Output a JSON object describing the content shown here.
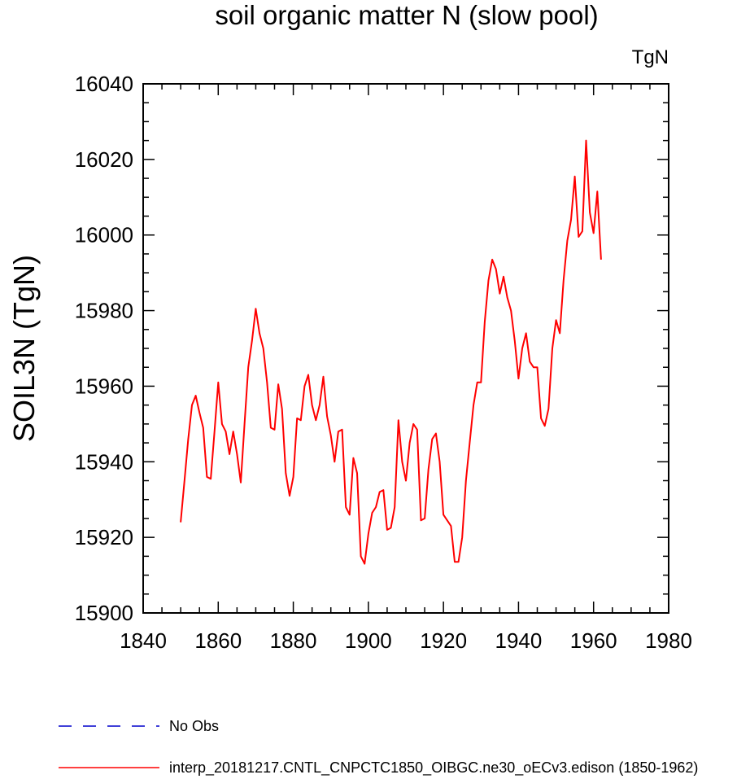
{
  "chart_data": {
    "type": "line",
    "title": "soil organic matter N (slow pool)",
    "units_label": "TgN",
    "ylabel": "SOIL3N  (TgN)",
    "xlabel": "",
    "xlim": [
      1840,
      1980
    ],
    "ylim": [
      15900,
      16040
    ],
    "x_ticks": [
      1840,
      1860,
      1880,
      1900,
      1920,
      1940,
      1960,
      1980
    ],
    "y_ticks": [
      15900,
      15920,
      15940,
      15960,
      15980,
      16000,
      16020,
      16040
    ],
    "x_tick_labels": [
      "1840",
      "1860",
      "1880",
      "1900",
      "1920",
      "1940",
      "1960",
      "1980"
    ],
    "y_tick_labels": [
      "15900",
      "15920",
      "15940",
      "15960",
      "15980",
      "16000",
      "16020",
      "16040"
    ],
    "grid": false,
    "legend_position": "bottom",
    "series": [
      {
        "name": "interp_20181217.CNTL_CNPCTC1850_OIBGC.ne30_oECv3.edison (1850-1962)",
        "color": "#ff0000",
        "style": "solid",
        "x": [
          1850,
          1851,
          1852,
          1853,
          1854,
          1855,
          1856,
          1857,
          1858,
          1859,
          1860,
          1861,
          1862,
          1863,
          1864,
          1865,
          1866,
          1867,
          1868,
          1869,
          1870,
          1871,
          1872,
          1873,
          1874,
          1875,
          1876,
          1877,
          1878,
          1879,
          1880,
          1881,
          1882,
          1883,
          1884,
          1885,
          1886,
          1887,
          1888,
          1889,
          1890,
          1891,
          1892,
          1893,
          1894,
          1895,
          1896,
          1897,
          1898,
          1899,
          1900,
          1901,
          1902,
          1903,
          1904,
          1905,
          1906,
          1907,
          1908,
          1909,
          1910,
          1911,
          1912,
          1913,
          1914,
          1915,
          1916,
          1917,
          1918,
          1919,
          1920,
          1921,
          1922,
          1923,
          1924,
          1925,
          1926,
          1927,
          1928,
          1929,
          1930,
          1931,
          1932,
          1933,
          1934,
          1935,
          1936,
          1937,
          1938,
          1939,
          1940,
          1941,
          1942,
          1943,
          1944,
          1945,
          1946,
          1947,
          1948,
          1949,
          1950,
          1951,
          1952,
          1953,
          1954,
          1955,
          1956,
          1957,
          1958,
          1959,
          1960,
          1961,
          1962
        ],
        "y": [
          15924,
          15935,
          15946,
          15955,
          15957.5,
          15953,
          15949,
          15936,
          15935.5,
          15948,
          15961,
          15950,
          15948,
          15942,
          15948,
          15942,
          15934.5,
          15950,
          15965,
          15972,
          15980.5,
          15974,
          15970,
          15961,
          15949,
          15948.5,
          15960.5,
          15954,
          15937,
          15931,
          15936,
          15951.5,
          15951,
          15960,
          15963,
          15955,
          15951,
          15955,
          15962.5,
          15952,
          15947,
          15940,
          15948,
          15948.5,
          15928,
          15926,
          15941,
          15937,
          15915,
          15913,
          15921,
          15926.5,
          15928,
          15932,
          15932.5,
          15922,
          15922.5,
          15928,
          15951,
          15940,
          15935,
          15945,
          15950,
          15948.5,
          15924.5,
          15925,
          15938,
          15946,
          15947.5,
          15940,
          15926,
          15924.5,
          15923,
          15913.5,
          15913.5,
          15920,
          15935,
          15945,
          15955,
          15961,
          15961,
          15977,
          15988,
          15993.5,
          15991,
          15984.5,
          15989,
          15983.5,
          15980,
          15972,
          15962,
          15970,
          15974,
          15966.5,
          15965,
          15965,
          15951.5,
          15949.5,
          15954,
          15970,
          15977.5,
          15974,
          15988,
          15998.5,
          16004,
          16015.5,
          15999.5,
          16001,
          16025,
          16006,
          16000.5,
          16011.5,
          15993.5
        ]
      },
      {
        "name": "No Obs",
        "color": "#0000cc",
        "style": "dashed",
        "x": [],
        "y": []
      }
    ]
  }
}
